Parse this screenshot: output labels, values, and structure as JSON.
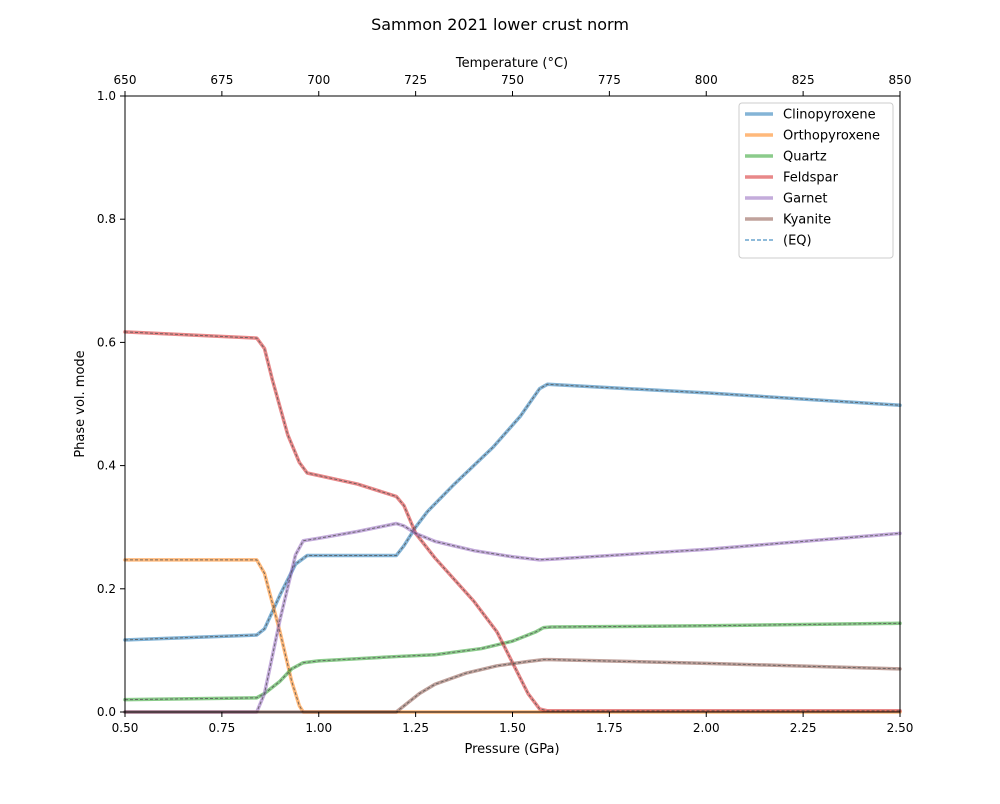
{
  "chart_data": {
    "type": "line",
    "title": "Sammon 2021 lower crust norm",
    "xlabel": "Pressure (GPa)",
    "ylabel": "Phase vol. mode",
    "top_xlabel": "Temperature (°C)",
    "xlim": [
      0.5,
      2.5
    ],
    "ylim": [
      0.0,
      1.0
    ],
    "top_xlim": [
      650,
      850
    ],
    "x_ticks": [
      "0.50",
      "0.75",
      "1.00",
      "1.25",
      "1.50",
      "1.75",
      "2.00",
      "2.25",
      "2.50"
    ],
    "x_tick_values": [
      0.5,
      0.75,
      1.0,
      1.25,
      1.5,
      1.75,
      2.0,
      2.25,
      2.5
    ],
    "y_ticks": [
      "0.0",
      "0.2",
      "0.4",
      "0.6",
      "0.8",
      "1.0"
    ],
    "y_tick_values": [
      0.0,
      0.2,
      0.4,
      0.6,
      0.8,
      1.0
    ],
    "top_ticks": [
      "650",
      "675",
      "700",
      "725",
      "750",
      "775",
      "800",
      "825",
      "850"
    ],
    "top_tick_values": [
      650,
      675,
      700,
      725,
      750,
      775,
      800,
      825,
      850
    ],
    "grid": false,
    "legend_position": "top-right",
    "eq_legend_label": "(EQ)",
    "eq_color": "#1f77b4",
    "series": [
      {
        "name": "Clinopyroxene",
        "color": "#1f77b4",
        "points": [
          [
            0.5,
            0.117
          ],
          [
            0.84,
            0.125
          ],
          [
            0.86,
            0.135
          ],
          [
            0.9,
            0.19
          ],
          [
            0.94,
            0.24
          ],
          [
            0.97,
            0.254
          ],
          [
            1.2,
            0.254
          ],
          [
            1.22,
            0.27
          ],
          [
            1.25,
            0.3
          ],
          [
            1.28,
            0.325
          ],
          [
            1.35,
            0.37
          ],
          [
            1.45,
            0.43
          ],
          [
            1.52,
            0.48
          ],
          [
            1.57,
            0.525
          ],
          [
            1.59,
            0.532
          ],
          [
            2.0,
            0.518
          ],
          [
            2.5,
            0.498
          ]
        ]
      },
      {
        "name": "Orthopyroxene",
        "color": "#ff7f0e",
        "points": [
          [
            0.5,
            0.247
          ],
          [
            0.84,
            0.247
          ],
          [
            0.86,
            0.225
          ],
          [
            0.9,
            0.13
          ],
          [
            0.93,
            0.05
          ],
          [
            0.95,
            0.01
          ],
          [
            0.96,
            0.0
          ],
          [
            2.5,
            0.0
          ]
        ]
      },
      {
        "name": "Quartz",
        "color": "#2ca02c",
        "points": [
          [
            0.5,
            0.02
          ],
          [
            0.84,
            0.023
          ],
          [
            0.86,
            0.03
          ],
          [
            0.9,
            0.05
          ],
          [
            0.93,
            0.07
          ],
          [
            0.96,
            0.08
          ],
          [
            1.0,
            0.083
          ],
          [
            1.2,
            0.09
          ],
          [
            1.3,
            0.093
          ],
          [
            1.42,
            0.103
          ],
          [
            1.5,
            0.115
          ],
          [
            1.56,
            0.13
          ],
          [
            1.58,
            0.137
          ],
          [
            1.6,
            0.138
          ],
          [
            2.0,
            0.14
          ],
          [
            2.5,
            0.144
          ]
        ]
      },
      {
        "name": "Feldspar",
        "color": "#d62728",
        "points": [
          [
            0.5,
            0.617
          ],
          [
            0.84,
            0.607
          ],
          [
            0.86,
            0.59
          ],
          [
            0.88,
            0.54
          ],
          [
            0.92,
            0.45
          ],
          [
            0.95,
            0.405
          ],
          [
            0.97,
            0.388
          ],
          [
            1.1,
            0.37
          ],
          [
            1.2,
            0.35
          ],
          [
            1.22,
            0.335
          ],
          [
            1.25,
            0.29
          ],
          [
            1.3,
            0.25
          ],
          [
            1.4,
            0.18
          ],
          [
            1.46,
            0.13
          ],
          [
            1.5,
            0.08
          ],
          [
            1.54,
            0.03
          ],
          [
            1.57,
            0.005
          ],
          [
            1.59,
            0.002
          ],
          [
            2.5,
            0.002
          ]
        ]
      },
      {
        "name": "Garnet",
        "color": "#9467bd",
        "points": [
          [
            0.5,
            0.0
          ],
          [
            0.84,
            0.0
          ],
          [
            0.86,
            0.03
          ],
          [
            0.9,
            0.15
          ],
          [
            0.94,
            0.255
          ],
          [
            0.96,
            0.278
          ],
          [
            1.0,
            0.282
          ],
          [
            1.1,
            0.293
          ],
          [
            1.2,
            0.306
          ],
          [
            1.22,
            0.302
          ],
          [
            1.25,
            0.29
          ],
          [
            1.3,
            0.277
          ],
          [
            1.4,
            0.262
          ],
          [
            1.5,
            0.252
          ],
          [
            1.57,
            0.247
          ],
          [
            1.6,
            0.248
          ],
          [
            2.0,
            0.264
          ],
          [
            2.5,
            0.29
          ]
        ]
      },
      {
        "name": "Kyanite",
        "color": "#8c564b",
        "points": [
          [
            0.5,
            0.0
          ],
          [
            1.2,
            0.0
          ],
          [
            1.23,
            0.015
          ],
          [
            1.26,
            0.03
          ],
          [
            1.3,
            0.045
          ],
          [
            1.38,
            0.063
          ],
          [
            1.46,
            0.075
          ],
          [
            1.54,
            0.082
          ],
          [
            1.58,
            0.085
          ],
          [
            1.6,
            0.085
          ],
          [
            2.0,
            0.079
          ],
          [
            2.5,
            0.07
          ]
        ]
      }
    ]
  }
}
